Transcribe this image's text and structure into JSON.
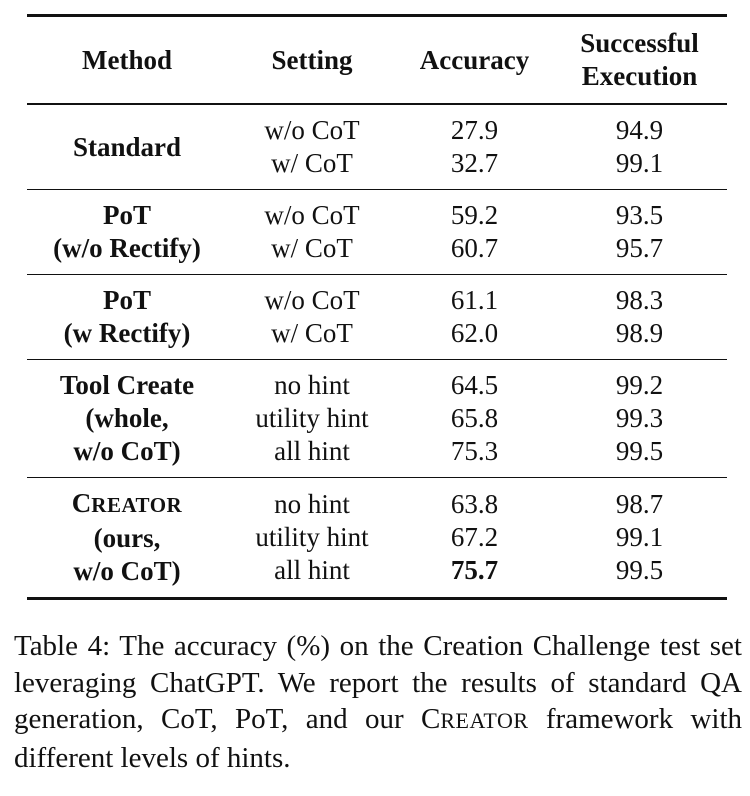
{
  "table": {
    "headers": {
      "method": "Method",
      "setting": "Setting",
      "accuracy": "Accuracy",
      "execution_line1": "Successful",
      "execution_line2": "Execution"
    },
    "groups": [
      {
        "method_lines": [
          "Standard"
        ],
        "rows": [
          {
            "setting": "w/o CoT",
            "accuracy": "27.9",
            "execution": "94.9"
          },
          {
            "setting": "w/ CoT",
            "accuracy": "32.7",
            "execution": "99.1"
          }
        ]
      },
      {
        "method_lines": [
          "PoT",
          "(w/o Rectify)"
        ],
        "rows": [
          {
            "setting": "w/o CoT",
            "accuracy": "59.2",
            "execution": "93.5"
          },
          {
            "setting": "w/ CoT",
            "accuracy": "60.7",
            "execution": "95.7"
          }
        ]
      },
      {
        "method_lines": [
          "PoT",
          "(w Rectify)"
        ],
        "rows": [
          {
            "setting": "w/o CoT",
            "accuracy": "61.1",
            "execution": "98.3"
          },
          {
            "setting": "w/ CoT",
            "accuracy": "62.0",
            "execution": "98.9"
          }
        ]
      },
      {
        "method_lines": [
          "Tool Create",
          "(whole,",
          "w/o CoT)"
        ],
        "rows": [
          {
            "setting": "no hint",
            "accuracy": "64.5",
            "execution": "99.2"
          },
          {
            "setting": "utility hint",
            "accuracy": "65.8",
            "execution": "99.3"
          },
          {
            "setting": "all hint",
            "accuracy": "75.3",
            "execution": "99.5"
          }
        ]
      },
      {
        "method_lines": [
          "CREATOR",
          "(ours,",
          "w/o CoT)"
        ],
        "rows": [
          {
            "setting": "no hint",
            "accuracy": "63.8",
            "execution": "98.7"
          },
          {
            "setting": "utility hint",
            "accuracy": "67.2",
            "execution": "99.1"
          },
          {
            "setting": "all hint",
            "accuracy": "75.7",
            "execution": "99.5",
            "accuracy_bold": true
          }
        ]
      }
    ]
  },
  "caption": {
    "part1": "Table 4: The accuracy (%) on the Creation Challenge test set leveraging ChatGPT. We report the results of standard QA generation, CoT, PoT, and our ",
    "creator": "CREATOR",
    "part2": " framework with different levels of hints."
  }
}
